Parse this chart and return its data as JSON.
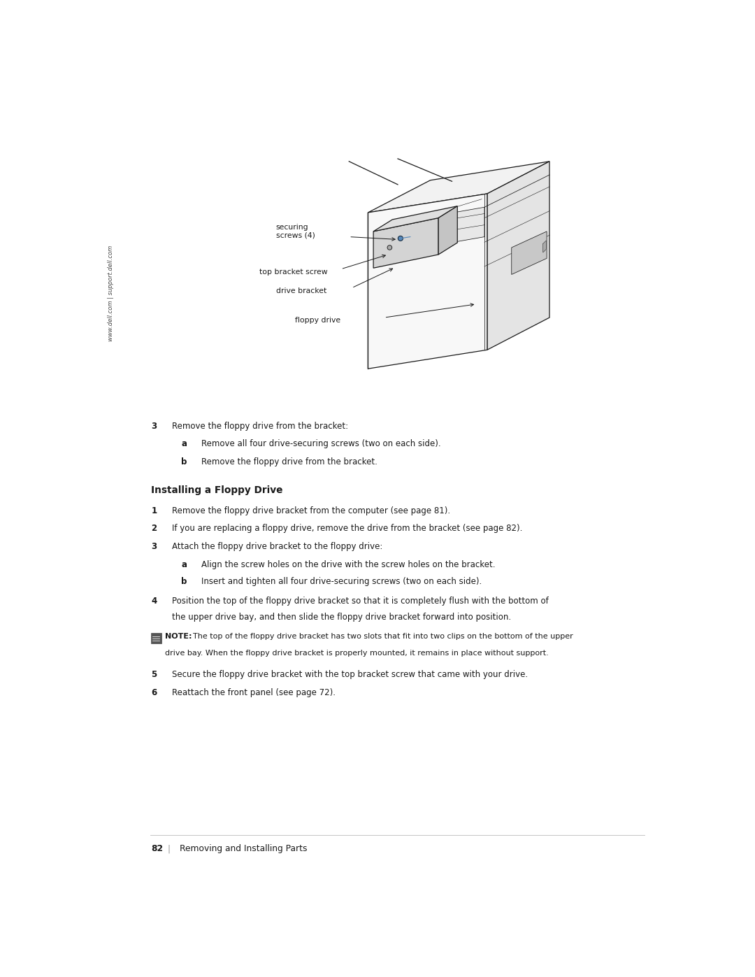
{
  "background_color": "#ffffff",
  "page_width": 10.8,
  "page_height": 13.97,
  "sidebar_text": "www.dell.com | support.dell.com",
  "diagram_labels": {
    "securing_screws": "securing\nscrews (4)",
    "top_bracket_screw": "top bracket screw",
    "drive_bracket": "drive bracket",
    "floppy_drive": "floppy drive"
  },
  "step3_intro": "Remove the floppy drive from the bracket:",
  "step3a": "Remove all four drive-securing screws (two on each side).",
  "step3b": "Remove the floppy drive from the bracket.",
  "section_title": "Installing a Floppy Drive",
  "install_steps_1_3": [
    "Remove the floppy drive bracket from the computer (see page 81).",
    "If you are replacing a floppy drive, remove the drive from the bracket (see page 82).",
    "Attach the floppy drive bracket to the floppy drive:"
  ],
  "install_sub_3a": "Align the screw holes on the drive with the screw holes on the bracket.",
  "install_sub_3b": "Insert and tighten all four drive-securing screws (two on each side).",
  "install_step4": "Position the top of the floppy drive bracket so that it is completely flush with the bottom of\nthe upper drive bay, and then slide the floppy drive bracket forward into position.",
  "note_label": "NOTE:",
  "note_text": "The top of the floppy drive bracket has two slots that fit into two clips on the bottom of the upper\ndrive bay. When the floppy drive bracket is properly mounted, it remains in place without support.",
  "install_step5": "Secure the floppy drive bracket with the top bracket screw that came with your drive.",
  "install_step6": "Reattach the front panel (see page 72).",
  "footer_page": "82",
  "footer_text": "Removing and Installing Parts",
  "line_color": "#1a1a1a",
  "gray_light": "#f0f0f0",
  "gray_mid": "#d8d8d8",
  "gray_dark": "#c0c0c0",
  "gray_bracket": "#c8c8c8",
  "blue_screw": "#5588bb"
}
